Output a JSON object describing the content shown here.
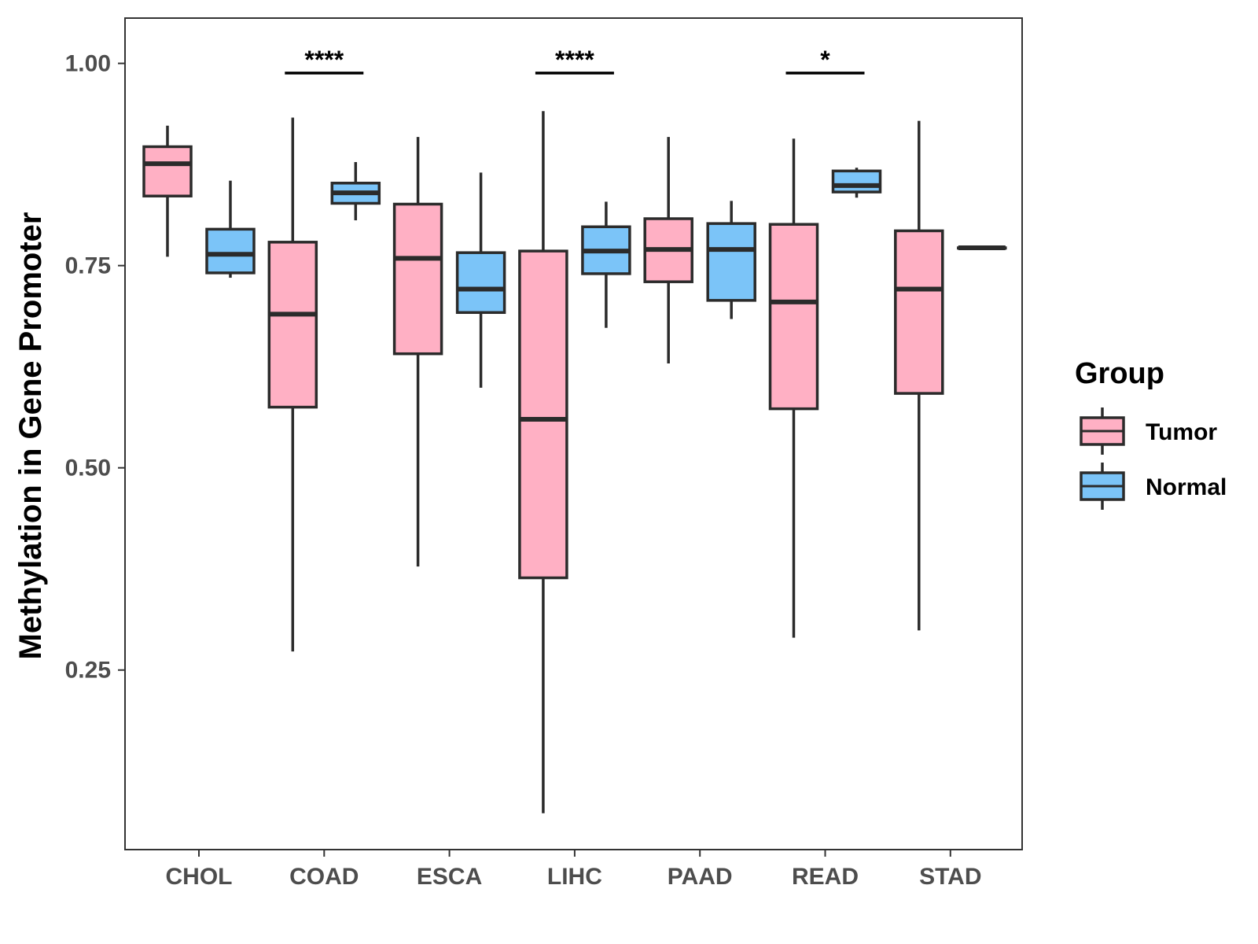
{
  "chart_data": {
    "type": "boxplot",
    "title": "",
    "xlabel": "",
    "ylabel": "Methylation in Gene Promoter",
    "ylim": [
      0.028,
      1.056
    ],
    "yticks": [
      "0.25",
      "0.50",
      "0.75",
      "1.00"
    ],
    "ytick_values": [
      0.25,
      0.5,
      0.75,
      1.0
    ],
    "grid": false,
    "legend_position": "right",
    "categories": [
      "CHOL",
      "COAD",
      "ESCA",
      "LIHC",
      "PAAD",
      "READ",
      "STAD"
    ],
    "legend": {
      "title": "Group",
      "items": [
        {
          "label": "Tumor",
          "color": "#FFB0C4"
        },
        {
          "label": "Normal",
          "color": "#7BC4F8"
        }
      ]
    },
    "series": [
      {
        "name": "Tumor",
        "color": "#FFB0C4",
        "boxes": [
          {
            "category": "CHOL",
            "min": 0.761,
            "q1": 0.836,
            "median": 0.876,
            "q3": 0.897,
            "max": 0.923
          },
          {
            "category": "COAD",
            "min": 0.273,
            "q1": 0.575,
            "median": 0.69,
            "q3": 0.779,
            "max": 0.933
          },
          {
            "category": "ESCA",
            "min": 0.378,
            "q1": 0.641,
            "median": 0.759,
            "q3": 0.826,
            "max": 0.909
          },
          {
            "category": "LIHC",
            "min": 0.073,
            "q1": 0.364,
            "median": 0.56,
            "q3": 0.768,
            "max": 0.941
          },
          {
            "category": "PAAD",
            "min": 0.629,
            "q1": 0.73,
            "median": 0.77,
            "q3": 0.808,
            "max": 0.909
          },
          {
            "category": "READ",
            "min": 0.29,
            "q1": 0.573,
            "median": 0.705,
            "q3": 0.801,
            "max": 0.907
          },
          {
            "category": "STAD",
            "min": 0.299,
            "q1": 0.592,
            "median": 0.721,
            "q3": 0.793,
            "max": 0.929
          }
        ]
      },
      {
        "name": "Normal",
        "color": "#7BC4F8",
        "boxes": [
          {
            "category": "CHOL",
            "min": 0.735,
            "q1": 0.741,
            "median": 0.764,
            "q3": 0.795,
            "max": 0.855
          },
          {
            "category": "COAD",
            "min": 0.806,
            "q1": 0.827,
            "median": 0.84,
            "q3": 0.852,
            "max": 0.878
          },
          {
            "category": "ESCA",
            "min": 0.599,
            "q1": 0.692,
            "median": 0.721,
            "q3": 0.766,
            "max": 0.865
          },
          {
            "category": "LIHC",
            "min": 0.673,
            "q1": 0.74,
            "median": 0.768,
            "q3": 0.798,
            "max": 0.829
          },
          {
            "category": "PAAD",
            "min": 0.684,
            "q1": 0.707,
            "median": 0.77,
            "q3": 0.802,
            "max": 0.83
          },
          {
            "category": "READ",
            "min": 0.834,
            "q1": 0.841,
            "median": 0.849,
            "q3": 0.867,
            "max": 0.871
          },
          {
            "category": "STAD",
            "min": 0.772,
            "q1": 0.772,
            "median": 0.772,
            "q3": 0.772,
            "max": 0.772
          }
        ]
      }
    ],
    "significance": [
      {
        "category": "COAD",
        "label": "****",
        "y": 0.988
      },
      {
        "category": "LIHC",
        "label": "****",
        "y": 0.988
      },
      {
        "category": "READ",
        "label": "*",
        "y": 0.988
      }
    ]
  }
}
